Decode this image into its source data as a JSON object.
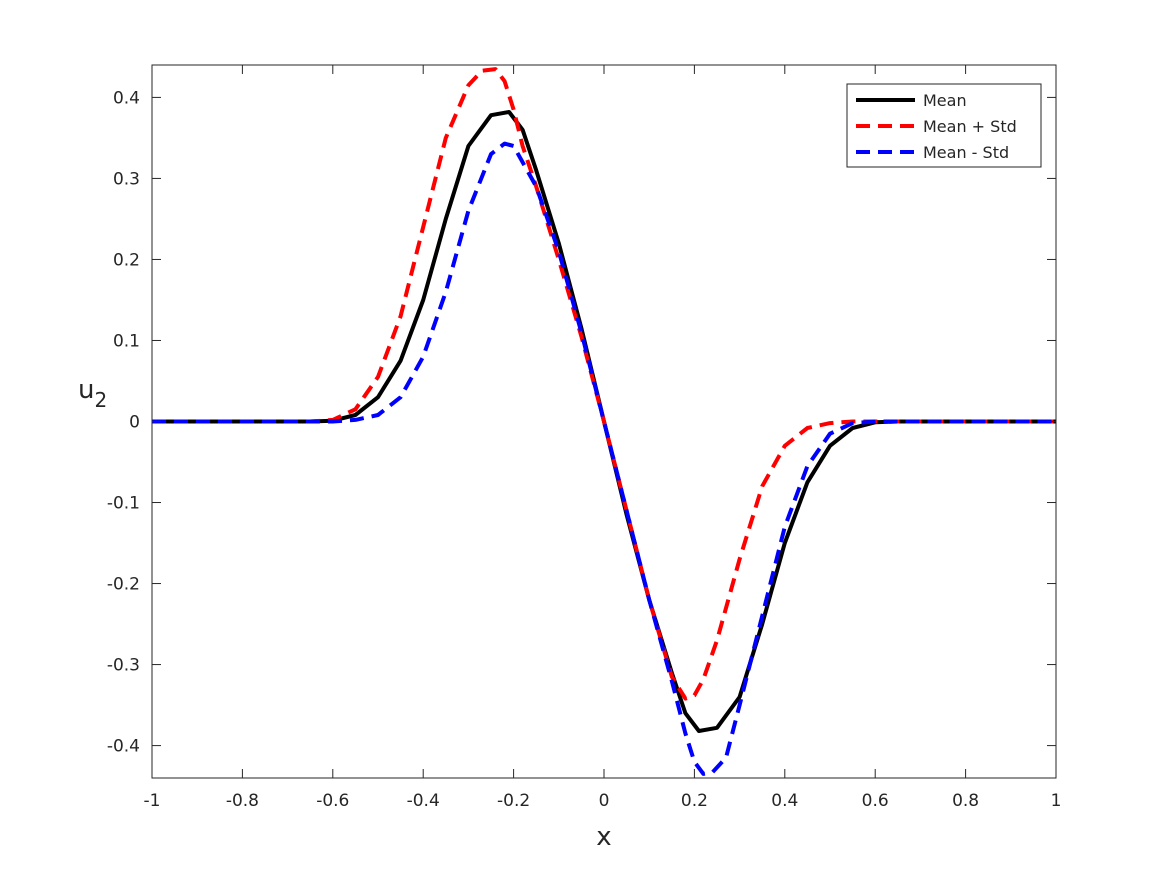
{
  "chart_data": {
    "type": "line",
    "title": "",
    "xlabel": "x",
    "ylabel": "u",
    "ylabel_subscript": "2",
    "xlim": [
      -1,
      1
    ],
    "ylim": [
      -0.44,
      0.44
    ],
    "xticks": [
      -1,
      -0.8,
      -0.6,
      -0.4,
      -0.2,
      0,
      0.2,
      0.4,
      0.6,
      0.8,
      1
    ],
    "xtick_labels": [
      "-1",
      "-0.8",
      "-0.6",
      "-0.4",
      "-0.2",
      "0",
      "0.2",
      "0.4",
      "0.6",
      "0.8",
      "1"
    ],
    "yticks": [
      -0.4,
      -0.3,
      -0.2,
      -0.1,
      0,
      0.1,
      0.2,
      0.3,
      0.4
    ],
    "ytick_labels": [
      "-0.4",
      "-0.3",
      "-0.2",
      "-0.1",
      "0",
      "0.1",
      "0.2",
      "0.3",
      "0.4"
    ],
    "grid": false,
    "legend_position": "top-right",
    "series": [
      {
        "name": "Mean",
        "color": "#000000",
        "style": "solid",
        "x": [
          -1,
          -0.8,
          -0.7,
          -0.65,
          -0.6,
          -0.55,
          -0.5,
          -0.45,
          -0.4,
          -0.35,
          -0.3,
          -0.25,
          -0.21,
          -0.18,
          -0.15,
          -0.1,
          -0.05,
          0,
          0.05,
          0.1,
          0.15,
          0.18,
          0.21,
          0.25,
          0.3,
          0.35,
          0.4,
          0.45,
          0.5,
          0.55,
          0.6,
          0.65,
          0.7,
          0.8,
          1
        ],
        "y": [
          0,
          0,
          0,
          0,
          0.001,
          0.008,
          0.03,
          0.075,
          0.15,
          0.25,
          0.34,
          0.378,
          0.382,
          0.36,
          0.31,
          0.22,
          0.115,
          0,
          -0.115,
          -0.22,
          -0.31,
          -0.36,
          -0.382,
          -0.378,
          -0.34,
          -0.25,
          -0.15,
          -0.075,
          -0.03,
          -0.008,
          -0.001,
          0,
          0,
          0,
          0
        ]
      },
      {
        "name": "Mean + Std",
        "color": "#ff0000",
        "style": "dashed",
        "x": [
          -1,
          -0.8,
          -0.7,
          -0.65,
          -0.6,
          -0.55,
          -0.5,
          -0.45,
          -0.4,
          -0.35,
          -0.3,
          -0.27,
          -0.24,
          -0.22,
          -0.2,
          -0.18,
          -0.15,
          -0.1,
          -0.05,
          0,
          0.05,
          0.1,
          0.15,
          0.18,
          0.2,
          0.22,
          0.25,
          0.3,
          0.35,
          0.4,
          0.45,
          0.5,
          0.55,
          0.6,
          0.7,
          0.8,
          1
        ],
        "y": [
          0,
          0,
          0,
          0,
          0.002,
          0.015,
          0.055,
          0.13,
          0.24,
          0.35,
          0.415,
          0.433,
          0.435,
          0.42,
          0.385,
          0.34,
          0.29,
          0.2,
          0.105,
          0,
          -0.11,
          -0.22,
          -0.315,
          -0.342,
          -0.338,
          -0.318,
          -0.27,
          -0.17,
          -0.08,
          -0.03,
          -0.008,
          -0.002,
          0,
          0,
          0,
          0,
          0
        ]
      },
      {
        "name": "Mean - Std",
        "color": "#0000ff",
        "style": "dashed",
        "x": [
          -1,
          -0.8,
          -0.7,
          -0.6,
          -0.55,
          -0.5,
          -0.45,
          -0.4,
          -0.35,
          -0.3,
          -0.25,
          -0.22,
          -0.2,
          -0.18,
          -0.15,
          -0.1,
          -0.05,
          0,
          0.05,
          0.1,
          0.15,
          0.18,
          0.2,
          0.22,
          0.24,
          0.27,
          0.3,
          0.35,
          0.4,
          0.45,
          0.5,
          0.55,
          0.6,
          0.65,
          0.7,
          0.8,
          1
        ],
        "y": [
          0,
          0,
          0,
          0,
          0.002,
          0.008,
          0.03,
          0.08,
          0.16,
          0.26,
          0.33,
          0.343,
          0.34,
          0.32,
          0.29,
          0.21,
          0.11,
          0,
          -0.11,
          -0.22,
          -0.32,
          -0.385,
          -0.42,
          -0.435,
          -0.433,
          -0.415,
          -0.35,
          -0.24,
          -0.13,
          -0.055,
          -0.015,
          -0.002,
          0,
          0,
          0,
          0,
          0
        ]
      }
    ]
  }
}
